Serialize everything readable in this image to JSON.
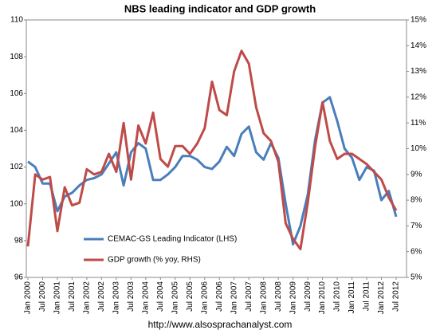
{
  "chart_data": {
    "type": "line",
    "title": "NBS leading indicator and GDP growth",
    "footer": "http://www.alsosprachanalyst.com",
    "x": [
      "2000-01",
      "2000-04",
      "2000-07",
      "2000-10",
      "2001-01",
      "2001-04",
      "2001-07",
      "2001-10",
      "2002-01",
      "2002-04",
      "2002-07",
      "2002-10",
      "2003-01",
      "2003-04",
      "2003-07",
      "2003-10",
      "2004-01",
      "2004-04",
      "2004-07",
      "2004-10",
      "2005-01",
      "2005-04",
      "2005-07",
      "2005-10",
      "2006-01",
      "2006-04",
      "2006-07",
      "2006-10",
      "2007-01",
      "2007-04",
      "2007-07",
      "2007-10",
      "2008-01",
      "2008-04",
      "2008-07",
      "2008-10",
      "2009-01",
      "2009-04",
      "2009-07",
      "2009-10",
      "2010-01",
      "2010-04",
      "2010-07",
      "2010-10",
      "2011-01",
      "2011-04",
      "2011-07",
      "2011-10",
      "2012-01",
      "2012-04",
      "2012-07"
    ],
    "xlim": [
      "2000-01",
      "2012-07"
    ],
    "xticks": [
      {
        "value": "2000-01",
        "label": "Jan 2000"
      },
      {
        "value": "2000-07",
        "label": "Jul 2000"
      },
      {
        "value": "2001-01",
        "label": "Jan 2001"
      },
      {
        "value": "2001-07",
        "label": "Jul 2001"
      },
      {
        "value": "2002-01",
        "label": "Jan 2002"
      },
      {
        "value": "2002-07",
        "label": "Jul 2002"
      },
      {
        "value": "2003-01",
        "label": "Jan 2003"
      },
      {
        "value": "2003-07",
        "label": "Jul 2003"
      },
      {
        "value": "2004-01",
        "label": "Jan 2004"
      },
      {
        "value": "2004-07",
        "label": "Jul 2004"
      },
      {
        "value": "2005-01",
        "label": "Jan 2005"
      },
      {
        "value": "2005-07",
        "label": "Jul 2005"
      },
      {
        "value": "2006-01",
        "label": "Jan 2006"
      },
      {
        "value": "2006-07",
        "label": "Jul 2006"
      },
      {
        "value": "2007-01",
        "label": "Jan 2007"
      },
      {
        "value": "2007-07",
        "label": "Jul 2007"
      },
      {
        "value": "2008-01",
        "label": "Jan 2008"
      },
      {
        "value": "2008-07",
        "label": "Jul 2008"
      },
      {
        "value": "2009-01",
        "label": "Jan 2009"
      },
      {
        "value": "2009-07",
        "label": "Jul 2009"
      },
      {
        "value": "2010-01",
        "label": "Jan 2010"
      },
      {
        "value": "2010-07",
        "label": "Jul 2010"
      },
      {
        "value": "2011-01",
        "label": "Jan 2011"
      },
      {
        "value": "2011-07",
        "label": "Jul 2011"
      },
      {
        "value": "2012-01",
        "label": "Jan 2012"
      },
      {
        "value": "2012-07",
        "label": "Jul 2012"
      }
    ],
    "ylim": [
      96,
      110
    ],
    "yticks": [
      96,
      98,
      100,
      102,
      104,
      106,
      108,
      110
    ],
    "y2lim": [
      5,
      15
    ],
    "y2ticks": [
      {
        "value": 5,
        "label": "5%"
      },
      {
        "value": 6,
        "label": "6%"
      },
      {
        "value": 7,
        "label": "7%"
      },
      {
        "value": 8,
        "label": "8%"
      },
      {
        "value": 9,
        "label": "9%"
      },
      {
        "value": 10,
        "label": "10%"
      },
      {
        "value": 11,
        "label": "11%"
      },
      {
        "value": 12,
        "label": "12%"
      },
      {
        "value": 13,
        "label": "13%"
      },
      {
        "value": 14,
        "label": "14%"
      },
      {
        "value": 15,
        "label": "15%"
      }
    ],
    "legend": "lower-left",
    "series": [
      {
        "name": "CEMAC-GS Leading Indicator (LHS)",
        "color": "#4a7ebb",
        "values": [
          102.3,
          102.0,
          101.1,
          101.1,
          99.6,
          100.4,
          100.6,
          101.0,
          101.3,
          101.4,
          101.6,
          102.2,
          102.8,
          101.0,
          102.8,
          103.3,
          103.0,
          101.3,
          101.3,
          101.6,
          102.0,
          102.6,
          102.6,
          102.4,
          102.0,
          101.9,
          102.3,
          103.1,
          102.6,
          103.8,
          104.2,
          102.8,
          102.4,
          103.3,
          102.5,
          100.0,
          97.8,
          98.8,
          100.5,
          103.5,
          105.5,
          105.8,
          104.5,
          103.0,
          102.5,
          101.3,
          102.0,
          101.8,
          100.2,
          100.7,
          99.3
        ]
      },
      {
        "name": "GDP growth (% yoy, RHS)",
        "color": "#be4b48",
        "axis": "y2",
        "values": [
          6.2,
          9.0,
          8.8,
          8.9,
          6.8,
          8.5,
          7.8,
          7.9,
          9.2,
          9.0,
          9.1,
          9.8,
          9.1,
          11.0,
          8.8,
          10.9,
          10.2,
          11.4,
          9.6,
          9.3,
          10.1,
          10.1,
          9.8,
          10.2,
          10.8,
          12.6,
          11.5,
          11.3,
          13.0,
          13.8,
          13.3,
          11.6,
          10.6,
          10.3,
          9.5,
          7.1,
          6.5,
          6.1,
          7.9,
          10.1,
          11.8,
          10.3,
          9.6,
          9.8,
          9.8,
          9.6,
          9.4,
          9.1,
          8.8,
          8.1,
          7.6
        ]
      }
    ]
  }
}
